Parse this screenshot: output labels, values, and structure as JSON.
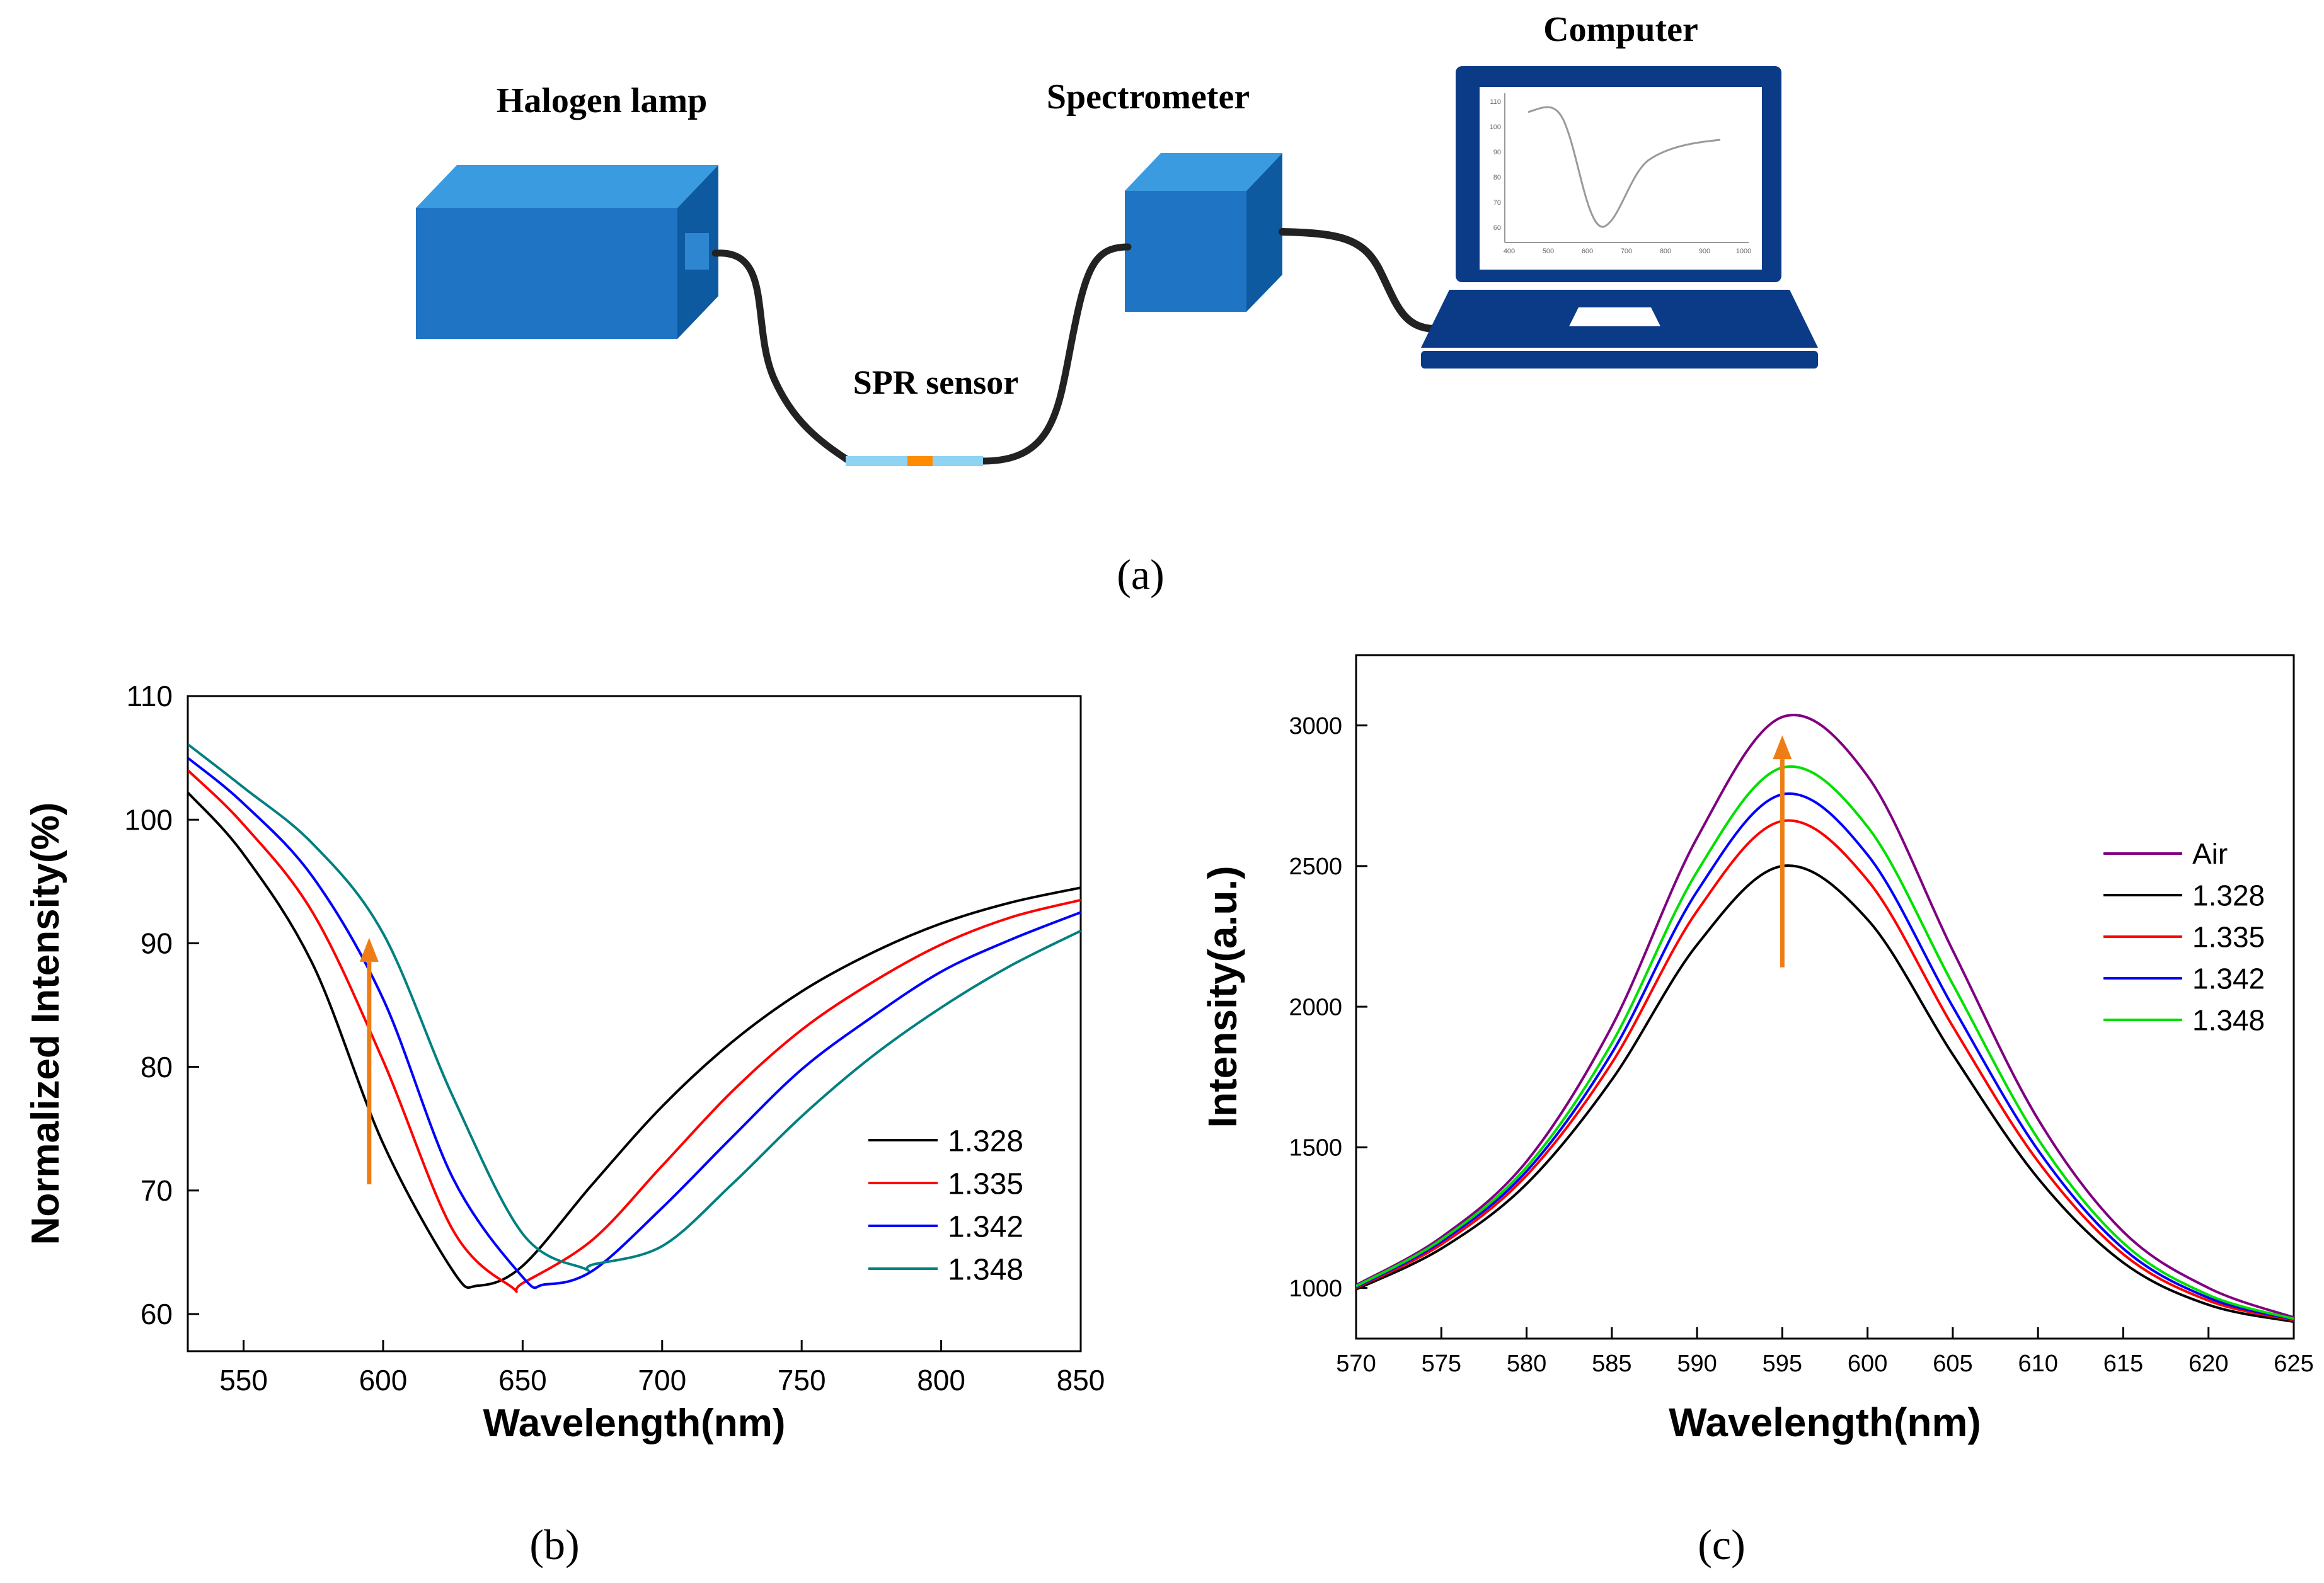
{
  "setup": {
    "halogen_lamp": "Halogen lamp",
    "spectrometer": "Spectrometer",
    "computer": "Computer",
    "spr_sensor": "SPR sensor",
    "caption": "(a)",
    "monitor_plot": {
      "x_ticks": [
        "400",
        "500",
        "600",
        "700",
        "800",
        "900",
        "1000"
      ],
      "y_ticks": [
        "110",
        "100",
        "90",
        "80",
        "70",
        "60"
      ]
    }
  },
  "colors": {
    "box_front": "#1f74c4",
    "box_top": "#3a9be0",
    "box_side": "#0d5aa0",
    "fiber": "#222222",
    "sensor_clad": "#8fd3f2",
    "sensor_core": "#ff8c00",
    "laptop": "#0b3a86",
    "arrow": "#ee7d16"
  },
  "chart_b": {
    "caption": "(b)",
    "chart_data": {
      "type": "line",
      "xlabel": "Wavelength(nm)",
      "ylabel": "Normalized Intensity(%)",
      "xlim": [
        530,
        850
      ],
      "ylim": [
        57,
        110
      ],
      "x_ticks": [
        550,
        600,
        650,
        700,
        750,
        800,
        850
      ],
      "y_ticks": [
        60,
        70,
        80,
        90,
        100,
        110
      ],
      "legend_position": "bottom-right",
      "arrow": {
        "x": 595,
        "y_from": 70.5,
        "y_to": 88.5,
        "color": "#ee7d16"
      },
      "x": [
        530,
        550,
        575,
        600,
        625,
        650,
        675,
        700,
        725,
        750,
        775,
        800,
        825,
        850
      ],
      "series": [
        {
          "name": "1.328",
          "color": "#000000",
          "min_x": 634,
          "min_y": 62.3,
          "values": [
            102.2,
            97.2,
            88.2,
            73.8,
            63.5,
            63.9,
            70.5,
            76.8,
            82.0,
            86.1,
            89.2,
            91.6,
            93.3,
            94.5
          ]
        },
        {
          "name": "1.335",
          "color": "#ff0000",
          "min_x": 646,
          "min_y": 62.2,
          "values": [
            104.0,
            99.6,
            92.4,
            80.5,
            66.8,
            62.5,
            66.0,
            72.0,
            78.0,
            83.0,
            86.8,
            89.9,
            92.1,
            93.5
          ]
        },
        {
          "name": "1.342",
          "color": "#0000ff",
          "min_x": 658,
          "min_y": 62.4,
          "values": [
            105.0,
            101.3,
            95.3,
            85.5,
            71.0,
            63.0,
            63.5,
            68.6,
            74.3,
            79.8,
            84.0,
            87.7,
            90.3,
            92.5
          ]
        },
        {
          "name": "1.348",
          "color": "#008080",
          "min_x": 672,
          "min_y": 63.7,
          "values": [
            106.1,
            102.6,
            98.0,
            90.8,
            77.6,
            66.5,
            64.0,
            65.5,
            70.5,
            76.0,
            80.8,
            84.8,
            88.2,
            91.0
          ]
        }
      ]
    }
  },
  "chart_c": {
    "caption": "(c)",
    "chart_data": {
      "type": "line",
      "xlabel": "Wavelength(nm)",
      "ylabel": "Intensity(a.u.)",
      "xlim": [
        570,
        625
      ],
      "ylim": [
        820,
        3250
      ],
      "x_ticks": [
        570,
        575,
        580,
        585,
        590,
        595,
        600,
        605,
        610,
        615,
        620,
        625
      ],
      "y_ticks": [
        1000,
        1500,
        2000,
        2500,
        3000
      ],
      "legend_position": "right",
      "arrow": {
        "x": 595,
        "y_from": 2140,
        "y_to": 2880,
        "color": "#ee7d16"
      },
      "x": [
        570,
        575,
        580,
        585,
        590,
        595,
        600,
        605,
        610,
        615,
        620,
        625
      ],
      "series": [
        {
          "name": "Air",
          "color": "#800080",
          "values": [
            1010,
            1180,
            1450,
            1930,
            2600,
            3030,
            2820,
            2200,
            1600,
            1200,
            1000,
            895
          ]
        },
        {
          "name": "1.328",
          "color": "#000000",
          "values": [
            995,
            1140,
            1370,
            1740,
            2220,
            2500,
            2310,
            1830,
            1390,
            1090,
            940,
            880
          ]
        },
        {
          "name": "1.335",
          "color": "#ff0000",
          "values": [
            1000,
            1155,
            1400,
            1800,
            2340,
            2660,
            2450,
            1930,
            1450,
            1120,
            955,
            885
          ]
        },
        {
          "name": "1.342",
          "color": "#0000ff",
          "values": [
            1003,
            1165,
            1415,
            1835,
            2410,
            2755,
            2540,
            2000,
            1490,
            1140,
            965,
            888
          ]
        },
        {
          "name": "1.348",
          "color": "#00e000",
          "values": [
            1006,
            1172,
            1430,
            1870,
            2480,
            2850,
            2640,
            2080,
            1530,
            1160,
            975,
            890
          ]
        }
      ]
    }
  }
}
